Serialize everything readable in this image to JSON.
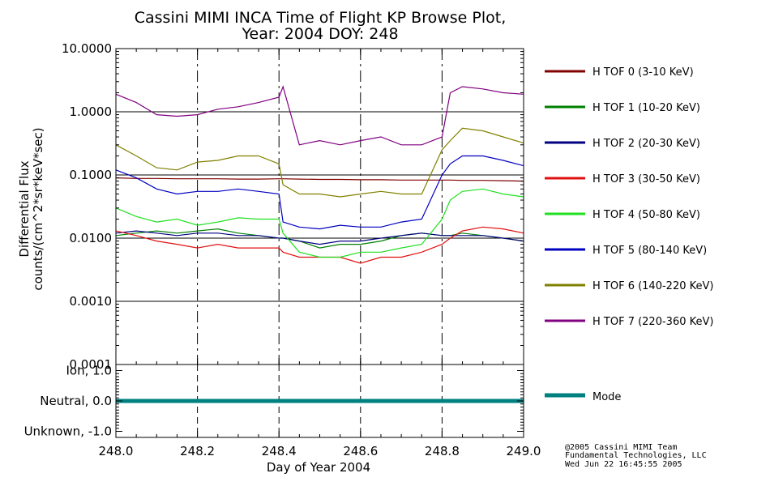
{
  "chart_data": {
    "type": "line",
    "title": "Cassini MIMI INCA Time of Flight KP Browse Plot,",
    "subtitle": "Year: 2004 DOY: 248",
    "xlabel": "Day of Year 2004",
    "ylabel": "Differential Flux",
    "ylabel_units": "counts/(cm^2*sr*keV*sec)",
    "xlim": [
      248.0,
      249.0
    ],
    "ylim": [
      0.0001,
      10.0
    ],
    "yscale": "log",
    "x_ticks": [
      "248.0",
      "248.2",
      "248.4",
      "248.6",
      "248.8",
      "249.0"
    ],
    "y_ticks": [
      "10.0000",
      "1.0000",
      "0.1000",
      "0.0100",
      "0.0010",
      "0.0001"
    ],
    "x_gridlines": [
      248.2,
      248.4,
      248.6,
      248.8
    ],
    "y_gridlines": [
      1.0,
      0.1,
      0.01,
      0.001
    ],
    "legend_position": "right",
    "x": [
      248.0,
      248.05,
      248.1,
      248.15,
      248.2,
      248.25,
      248.3,
      248.35,
      248.4,
      248.41,
      248.45,
      248.5,
      248.55,
      248.6,
      248.65,
      248.7,
      248.75,
      248.8,
      248.82,
      248.85,
      248.9,
      248.95,
      249.0
    ],
    "series": [
      {
        "name": "H TOF 0 (3-10 KeV)",
        "color": "#800000",
        "values": [
          0.09,
          0.088,
          0.088,
          0.087,
          0.087,
          0.087,
          0.086,
          0.086,
          0.087,
          0.087,
          0.086,
          0.085,
          0.085,
          0.084,
          0.084,
          0.083,
          0.083,
          0.083,
          0.083,
          0.082,
          0.082,
          0.081,
          0.08
        ]
      },
      {
        "name": "H TOF 1 (10-20 KeV)",
        "color": "#008000",
        "values": [
          0.011,
          0.012,
          0.013,
          0.012,
          0.013,
          0.014,
          0.012,
          0.011,
          0.01,
          0.01,
          0.009,
          0.007,
          0.008,
          0.008,
          0.009,
          0.011,
          0.012,
          0.011,
          0.011,
          0.012,
          0.011,
          0.01,
          0.009
        ]
      },
      {
        "name": "H TOF 2 (20-30 KeV)",
        "color": "#000080",
        "values": [
          0.012,
          0.013,
          0.012,
          0.011,
          0.012,
          0.012,
          0.011,
          0.011,
          0.01,
          0.01,
          0.009,
          0.008,
          0.009,
          0.009,
          0.01,
          0.011,
          0.012,
          0.011,
          0.011,
          0.011,
          0.011,
          0.01,
          0.009
        ]
      },
      {
        "name": "H TOF 3 (30-50 KeV)",
        "color": "#e01010",
        "values": [
          0.013,
          0.011,
          0.009,
          0.008,
          0.007,
          0.008,
          0.007,
          0.007,
          0.007,
          0.006,
          0.005,
          0.005,
          0.005,
          0.004,
          0.005,
          0.005,
          0.006,
          0.008,
          0.01,
          0.013,
          0.015,
          0.014,
          0.012
        ]
      },
      {
        "name": "H TOF 4 (50-80 KeV)",
        "color": "#20e020",
        "values": [
          0.03,
          0.022,
          0.018,
          0.02,
          0.016,
          0.018,
          0.021,
          0.02,
          0.02,
          0.012,
          0.006,
          0.005,
          0.005,
          0.006,
          0.006,
          0.007,
          0.008,
          0.02,
          0.04,
          0.055,
          0.06,
          0.05,
          0.045
        ]
      },
      {
        "name": "H TOF 5 (80-140 KeV)",
        "color": "#0000c0",
        "values": [
          0.12,
          0.09,
          0.06,
          0.05,
          0.055,
          0.055,
          0.06,
          0.055,
          0.05,
          0.018,
          0.015,
          0.014,
          0.016,
          0.015,
          0.015,
          0.018,
          0.02,
          0.1,
          0.15,
          0.2,
          0.2,
          0.17,
          0.14
        ]
      },
      {
        "name": "H TOF 6 (140-220 KeV)",
        "color": "#808000",
        "values": [
          0.3,
          0.2,
          0.13,
          0.12,
          0.16,
          0.17,
          0.2,
          0.2,
          0.15,
          0.07,
          0.05,
          0.05,
          0.045,
          0.05,
          0.055,
          0.05,
          0.05,
          0.25,
          0.35,
          0.55,
          0.5,
          0.4,
          0.32
        ]
      },
      {
        "name": "H TOF 7 (220-360 KeV)",
        "color": "#800080",
        "values": [
          1.9,
          1.4,
          0.9,
          0.85,
          0.9,
          1.1,
          1.2,
          1.4,
          1.7,
          2.5,
          0.3,
          0.35,
          0.3,
          0.35,
          0.4,
          0.3,
          0.3,
          0.4,
          2.0,
          2.5,
          2.3,
          2.0,
          1.9
        ]
      }
    ],
    "mode_panel": {
      "y_ticks": [
        "Ion, 1.0",
        "Neutral, 0.0",
        "Unknown, -1.0"
      ],
      "ylim": [
        -1.2,
        1.2
      ],
      "series": {
        "name": "Mode",
        "color": "#008080",
        "x": [
          248.0,
          249.0
        ],
        "values": [
          0.0,
          0.0
        ]
      }
    },
    "credit": [
      "@2005 Cassini MIMI Team",
      "Fundamental Technologies, LLC",
      "Wed Jun 22 16:45:55 2005"
    ]
  }
}
